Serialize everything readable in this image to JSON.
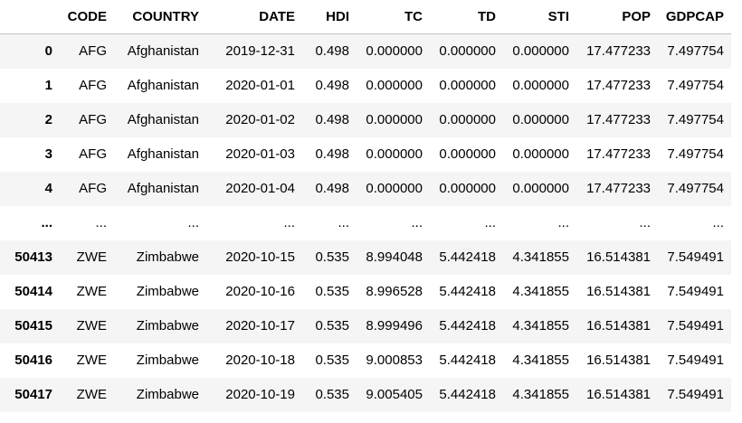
{
  "dataframe": {
    "columns": [
      "",
      "CODE",
      "COUNTRY",
      "DATE",
      "HDI",
      "TC",
      "TD",
      "STI",
      "POP",
      "GDPCAP"
    ],
    "rows": [
      [
        "0",
        "AFG",
        "Afghanistan",
        "2019-12-31",
        "0.498",
        "0.000000",
        "0.000000",
        "0.000000",
        "17.477233",
        "7.497754"
      ],
      [
        "1",
        "AFG",
        "Afghanistan",
        "2020-01-01",
        "0.498",
        "0.000000",
        "0.000000",
        "0.000000",
        "17.477233",
        "7.497754"
      ],
      [
        "2",
        "AFG",
        "Afghanistan",
        "2020-01-02",
        "0.498",
        "0.000000",
        "0.000000",
        "0.000000",
        "17.477233",
        "7.497754"
      ],
      [
        "3",
        "AFG",
        "Afghanistan",
        "2020-01-03",
        "0.498",
        "0.000000",
        "0.000000",
        "0.000000",
        "17.477233",
        "7.497754"
      ],
      [
        "4",
        "AFG",
        "Afghanistan",
        "2020-01-04",
        "0.498",
        "0.000000",
        "0.000000",
        "0.000000",
        "17.477233",
        "7.497754"
      ],
      [
        "...",
        "...",
        "...",
        "...",
        "...",
        "...",
        "...",
        "...",
        "...",
        "..."
      ],
      [
        "50413",
        "ZWE",
        "Zimbabwe",
        "2020-10-15",
        "0.535",
        "8.994048",
        "5.442418",
        "4.341855",
        "16.514381",
        "7.549491"
      ],
      [
        "50414",
        "ZWE",
        "Zimbabwe",
        "2020-10-16",
        "0.535",
        "8.996528",
        "5.442418",
        "4.341855",
        "16.514381",
        "7.549491"
      ],
      [
        "50415",
        "ZWE",
        "Zimbabwe",
        "2020-10-17",
        "0.535",
        "8.999496",
        "5.442418",
        "4.341855",
        "16.514381",
        "7.549491"
      ],
      [
        "50416",
        "ZWE",
        "Zimbabwe",
        "2020-10-18",
        "0.535",
        "9.000853",
        "5.442418",
        "4.341855",
        "16.514381",
        "7.549491"
      ],
      [
        "50417",
        "ZWE",
        "Zimbabwe",
        "2020-10-19",
        "0.535",
        "9.005405",
        "5.442418",
        "4.341855",
        "16.514381",
        "7.549491"
      ]
    ]
  }
}
